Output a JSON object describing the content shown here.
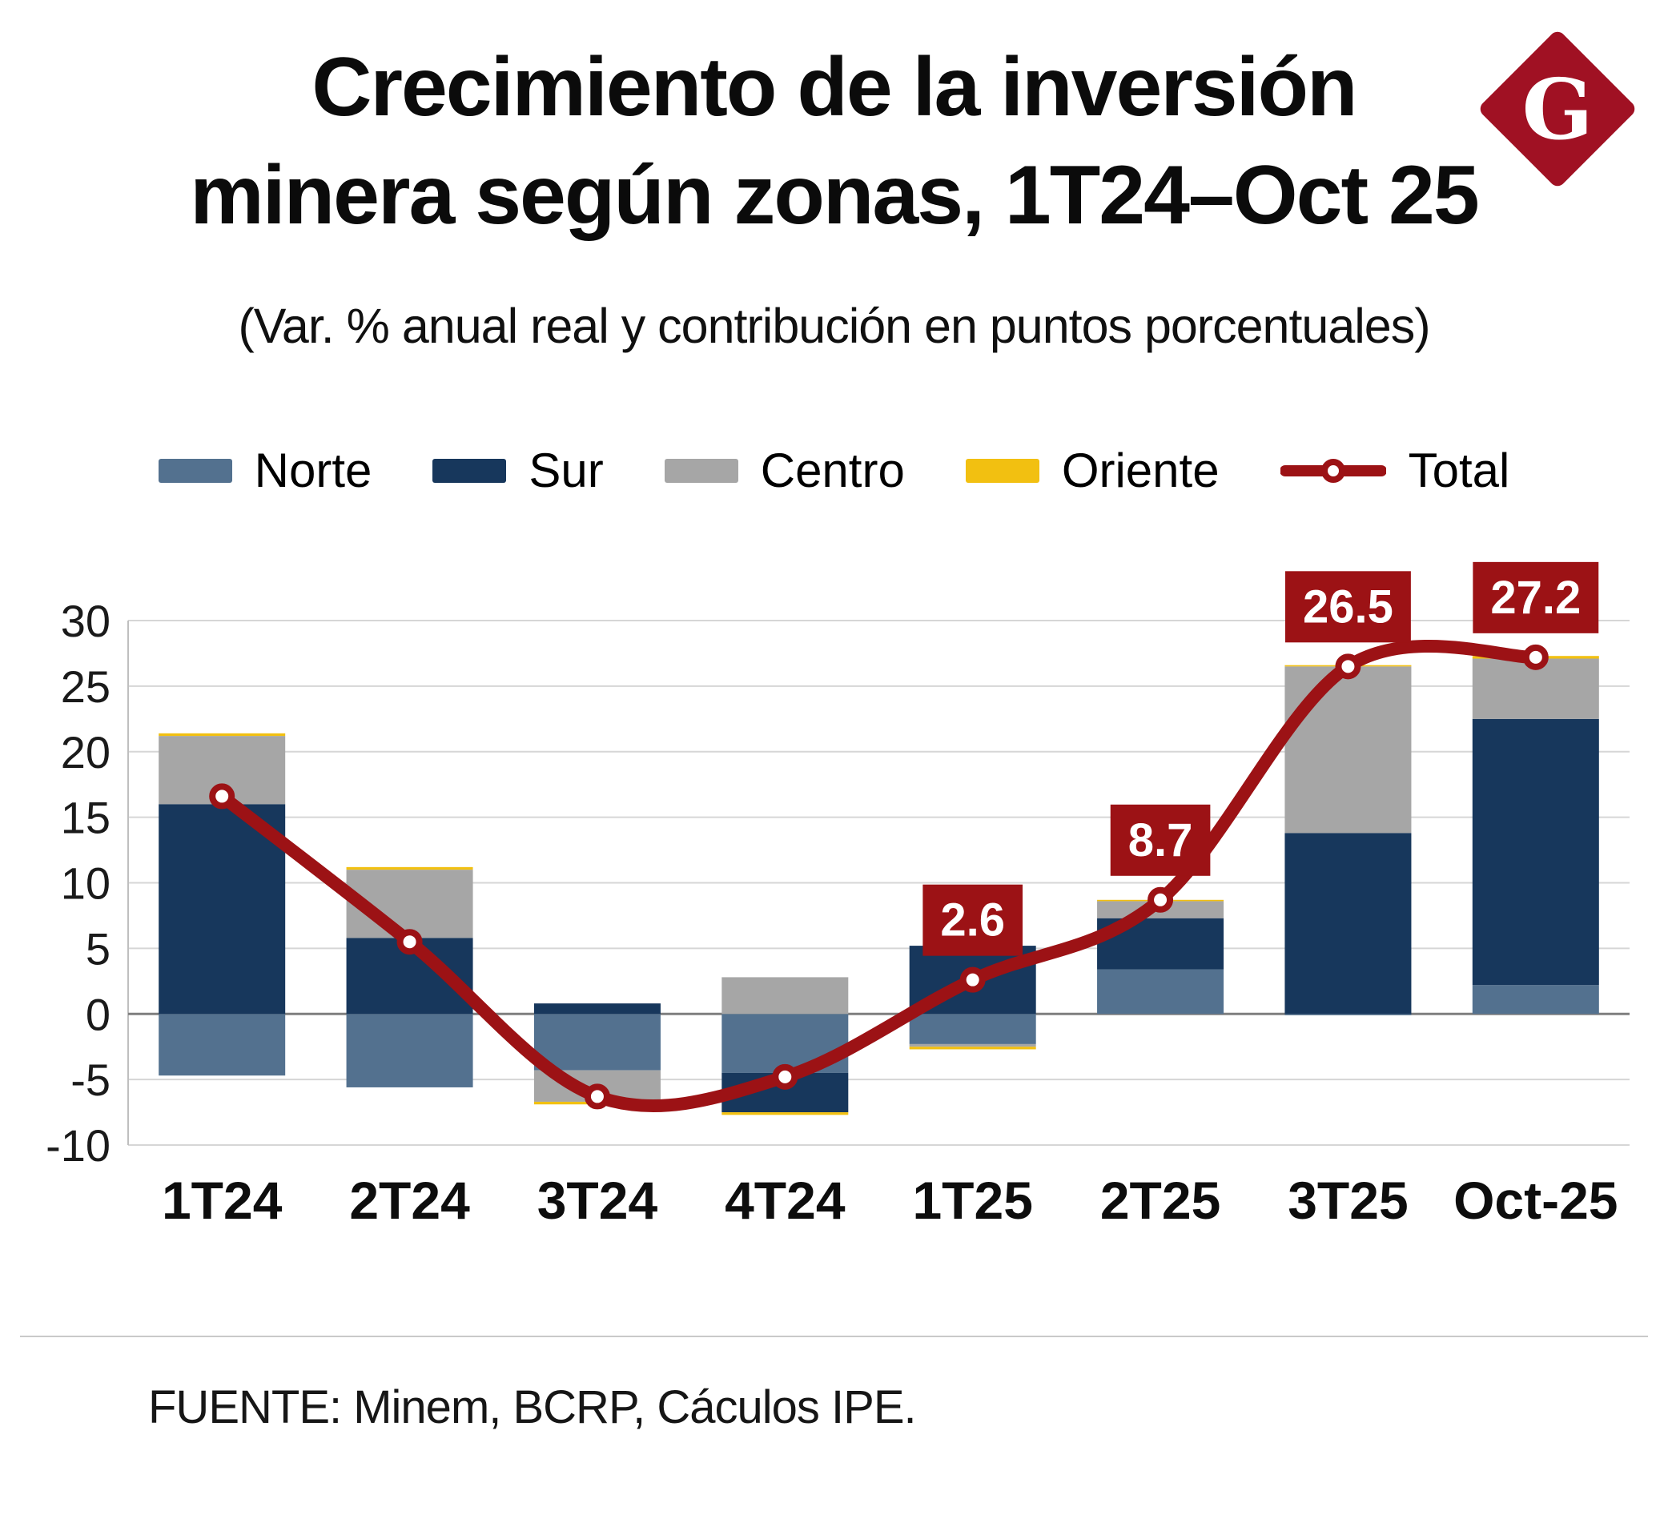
{
  "header": {
    "title_line1": "Crecimiento de la inversión",
    "title_line2": "minera según zonas, 1T24–Oct 25",
    "subtitle": "(Var. % anual real y contribución en puntos porcentuales)",
    "logo_letter": "G"
  },
  "footer": {
    "source": "FUENTE: Minem, BCRP, Cáculos IPE."
  },
  "colors": {
    "norte": "#53718f",
    "sur": "#17375c",
    "centro": "#a6a6a6",
    "oriente": "#f2c011",
    "total": "#9c1215",
    "label_box": "#9c1215",
    "logo": "#a01123",
    "grid": "#d6d6d6",
    "zero_line": "#7f7f7f",
    "spine": "#bfbfbf",
    "tick_text": "#1a1a1a"
  },
  "chart_data": {
    "type": "bar",
    "stacked": true,
    "title": "Crecimiento de la inversión minera según zonas, 1T24–Oct 25",
    "subtitle": "(Var. % anual real y contribución en puntos porcentuales)",
    "categories": [
      "1T24",
      "2T24",
      "3T24",
      "4T24",
      "1T25",
      "2T25",
      "3T25",
      "Oct-25"
    ],
    "series": [
      {
        "name": "Norte",
        "color_key": "norte",
        "values": [
          -4.7,
          -5.6,
          -4.3,
          -4.5,
          -2.3,
          3.4,
          -0.1,
          2.2
        ]
      },
      {
        "name": "Sur",
        "color_key": "sur",
        "values": [
          16.0,
          5.8,
          0.8,
          -3.0,
          5.2,
          3.9,
          13.8,
          20.3
        ]
      },
      {
        "name": "Centro",
        "color_key": "centro",
        "values": [
          5.2,
          5.2,
          -2.4,
          2.8,
          -0.2,
          1.3,
          12.7,
          4.6
        ]
      },
      {
        "name": "Oriente",
        "color_key": "oriente",
        "values": [
          0.2,
          0.2,
          -0.2,
          -0.2,
          -0.2,
          0.1,
          0.1,
          0.2
        ]
      }
    ],
    "line_series": {
      "name": "Total",
      "color_key": "total",
      "values": [
        16.6,
        5.5,
        -6.3,
        -4.8,
        2.6,
        8.7,
        26.5,
        27.2
      ],
      "point_labels": [
        null,
        null,
        null,
        null,
        "2.6",
        "8.7",
        "26.5",
        "27.2"
      ]
    },
    "ylim": [
      -10,
      30
    ],
    "y_ticks": [
      30,
      25,
      20,
      15,
      10,
      5,
      0,
      -5,
      -10
    ],
    "grid": true,
    "legend_position": "top",
    "xlabel": "",
    "ylabel": ""
  }
}
